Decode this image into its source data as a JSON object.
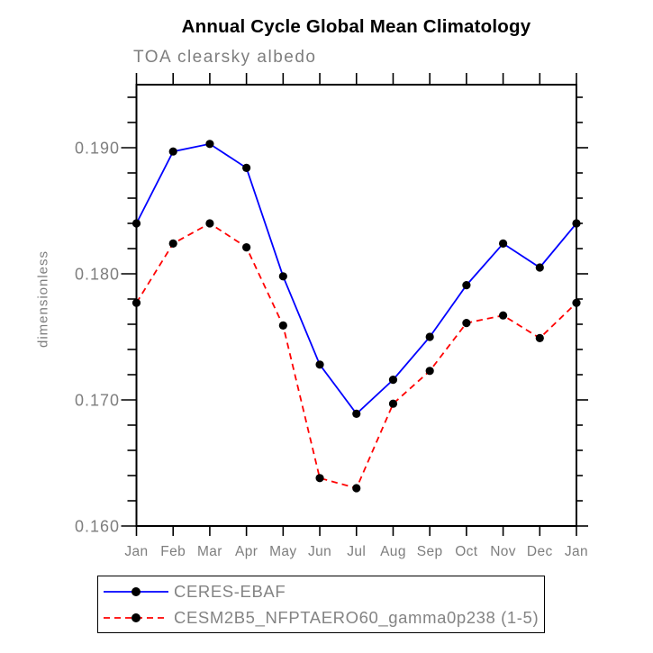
{
  "colors": {
    "series1": "#0000ff",
    "series2": "#ff0000",
    "marker": "#000000",
    "axis": "#000000",
    "label_gray": "#7e7e7e",
    "background": "#ffffff"
  },
  "chart_data": {
    "type": "line",
    "title": "Annual Cycle Global Mean Climatology",
    "subtitle": "TOA clearsky albedo",
    "ylabel": "dimensionless",
    "xlabel": "",
    "categories": [
      "Jan",
      "Feb",
      "Mar",
      "Apr",
      "May",
      "Jun",
      "Jul",
      "Aug",
      "Sep",
      "Oct",
      "Nov",
      "Dec",
      "Jan"
    ],
    "series": [
      {
        "name": "CERES-EBAF",
        "color": "#0000ff",
        "style": "solid",
        "marker": "filled-circle",
        "values": [
          0.184,
          0.1897,
          0.1903,
          0.1884,
          0.1798,
          0.1728,
          0.1689,
          0.1716,
          0.175,
          0.1791,
          0.1824,
          0.1805,
          0.184
        ]
      },
      {
        "name": "CESM2B5_NFPTAERO60_gamma0p238 (1-5)",
        "color": "#ff0000",
        "style": "dashed",
        "marker": "filled-circle",
        "values": [
          0.1777,
          0.1824,
          0.184,
          0.1821,
          0.1759,
          0.1638,
          0.163,
          0.1697,
          0.1723,
          0.1761,
          0.1767,
          0.1749,
          0.1777
        ]
      }
    ],
    "ylim": [
      0.16,
      0.195
    ],
    "yticks_major": [
      0.16,
      0.17,
      0.18,
      0.19
    ],
    "ytick_label_format": "3-decimals",
    "ytick_minor_step": 0.002,
    "grid": false,
    "legend_position": "bottom",
    "frame": "box-with-outward-ticks"
  },
  "legend": {
    "entries": [
      {
        "label": "CERES-EBAF"
      },
      {
        "label": "CESM2B5_NFPTAERO60_gamma0p238 (1-5)"
      }
    ]
  }
}
